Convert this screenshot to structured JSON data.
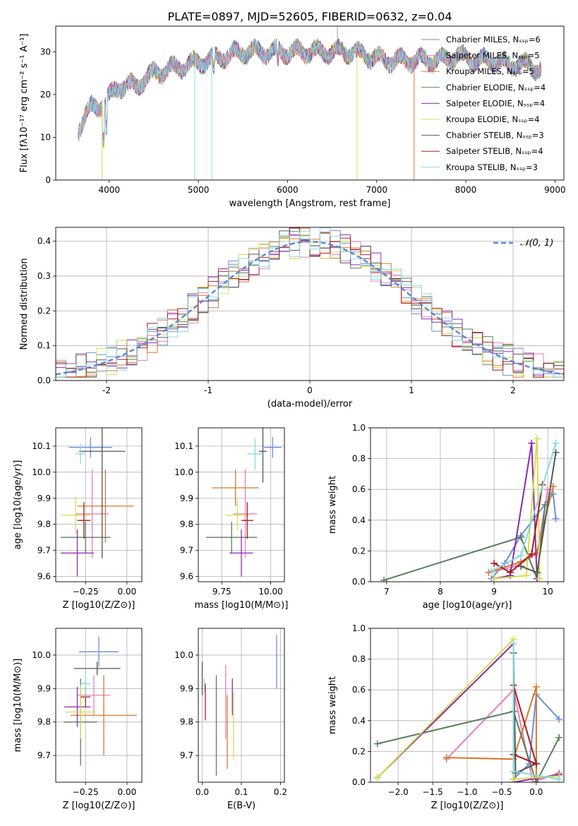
{
  "title": "PLATE=0897, MJD=52605, FIBERID=0632, z=0.04",
  "colors": [
    "#6a8fdc",
    "#e97fb8",
    "#d7782a",
    "#55805a",
    "#8a2ab0",
    "#d6dd4a",
    "#555555",
    "#a81c1c",
    "#86dbe2"
  ],
  "chart_data": [
    {
      "type": "line",
      "id": "spectrum",
      "xlabel": "wavelength [Angstrom, rest frame]",
      "ylabel": "Flux [fλ10⁻¹⁷ erg cm⁻² s⁻¹ A⁻¹]",
      "xlim": [
        3400,
        9100
      ],
      "ylim": [
        0,
        36
      ],
      "xticks": [
        4000,
        5000,
        6000,
        7000,
        8000,
        9000
      ],
      "yticks": [
        0,
        10,
        20,
        30
      ],
      "grid": false,
      "legend_position": "top-right",
      "continuum_x": [
        3650,
        3800,
        3950,
        4100,
        4300,
        4500,
        4700,
        4900,
        5100,
        5300,
        5500,
        5700,
        5900,
        6100,
        6300,
        6500,
        6700,
        6900,
        7100,
        7300,
        7500,
        7700,
        7900,
        8100,
        8300,
        8500,
        8700,
        8800
      ],
      "continuum_y": [
        12,
        17,
        18,
        22,
        22,
        25,
        26,
        27,
        28,
        29,
        30,
        30,
        30,
        30,
        30,
        30,
        30,
        29,
        28,
        28,
        28,
        28,
        29,
        28,
        28,
        27,
        27,
        26
      ],
      "series": [
        {
          "name": "Chabrier MILES, N_SSP=6"
        },
        {
          "name": "Salpeter MILES, N_SSP=5"
        },
        {
          "name": "Kroupa MILES, N_SSP=5"
        },
        {
          "name": "Chabrier ELODIE, N_SSP=4"
        },
        {
          "name": "Salpeter ELODIE, N_SSP=4"
        },
        {
          "name": "Kroupa ELODIE, N_SSP=4"
        },
        {
          "name": "Chabrier STELIB, N_SSP=3"
        },
        {
          "name": "Salpeter STELIB, N_SSP=4"
        },
        {
          "name": "Kroupa STELIB, N_SSP=3"
        }
      ]
    },
    {
      "type": "line",
      "id": "residuals",
      "xlabel": "(data-model)/error",
      "ylabel": "Normed distribution",
      "xlim": [
        -2.5,
        2.5
      ],
      "ylim": [
        0,
        0.44
      ],
      "xticks": [
        -2,
        -1,
        0,
        1,
        2
      ],
      "yticks": [
        0.0,
        0.1,
        0.2,
        0.3,
        0.4
      ],
      "grid": true,
      "legend_position": "top-right",
      "legend_label": "𝒩(0, 1)",
      "bin_width": 0.1
    },
    {
      "type": "scatter",
      "id": "age_vs_Z",
      "xlabel": "Z [log10(Z/Z⊙)]",
      "ylabel": "age  [log10(age/yr)]",
      "xlim": [
        -0.43,
        0.09
      ],
      "ylim": [
        9.58,
        10.17
      ],
      "xticks": [
        -0.25,
        0.0
      ],
      "xticklabels": [
        "−0.25",
        "0.00"
      ],
      "yticks": [
        9.6,
        9.7,
        9.8,
        9.9,
        10.0,
        10.1
      ],
      "grid": true,
      "points": [
        {
          "x": -0.22,
          "y": 10.095,
          "xerr": 0.13,
          "yerr": 0.04,
          "c": 0
        },
        {
          "x": -0.21,
          "y": 9.84,
          "xerr": 0.1,
          "yerr": 0.17,
          "c": 1
        },
        {
          "x": -0.13,
          "y": 9.87,
          "xerr": 0.17,
          "yerr": 0.14,
          "c": 2
        },
        {
          "x": -0.25,
          "y": 9.75,
          "xerr": 0.15,
          "yerr": 0.06,
          "c": 3
        },
        {
          "x": -0.3,
          "y": 9.69,
          "xerr": 0.1,
          "yerr": 0.09,
          "c": 4
        },
        {
          "x": -0.31,
          "y": 9.835,
          "xerr": 0.09,
          "yerr": 0.07,
          "c": 5
        },
        {
          "x": -0.15,
          "y": 10.08,
          "xerr": 0.14,
          "yerr": 0.41,
          "c": 6
        },
        {
          "x": -0.26,
          "y": 9.815,
          "xerr": 0.04,
          "yerr": 0.07,
          "c": 7
        },
        {
          "x": -0.28,
          "y": 10.07,
          "xerr": 0.03,
          "yerr": 0.04,
          "c": 8
        }
      ]
    },
    {
      "type": "scatter",
      "id": "age_vs_mass",
      "xlabel": "mass [log10(M/M⊙)]",
      "ylabel": "",
      "xlim": [
        9.63,
        10.07
      ],
      "ylim": [
        9.58,
        10.17
      ],
      "xticks": [
        9.75,
        10.0
      ],
      "xticklabels": [
        "9.75",
        "10.00"
      ],
      "yticks": [
        9.6,
        9.7,
        9.8,
        9.9,
        10.0,
        10.1
      ],
      "grid": true,
      "points": [
        {
          "x": 10.01,
          "y": 10.095,
          "xerr": 0.045,
          "yerr": 0.04,
          "c": 0
        },
        {
          "x": 9.87,
          "y": 9.84,
          "xerr": 0.06,
          "yerr": 0.17,
          "c": 1
        },
        {
          "x": 9.82,
          "y": 9.94,
          "xerr": 0.12,
          "yerr": 0.07,
          "c": 2
        },
        {
          "x": 9.8,
          "y": 9.75,
          "xerr": 0.13,
          "yerr": 0.06,
          "c": 3
        },
        {
          "x": 9.85,
          "y": 9.69,
          "xerr": 0.06,
          "yerr": 0.09,
          "c": 4
        },
        {
          "x": 9.83,
          "y": 9.835,
          "xerr": 0.06,
          "yerr": 0.06,
          "c": 5
        },
        {
          "x": 9.96,
          "y": 10.08,
          "xerr": 0.02,
          "yerr": 0.12,
          "c": 6
        },
        {
          "x": 9.88,
          "y": 9.815,
          "xerr": 0.03,
          "yerr": 0.07,
          "c": 7
        },
        {
          "x": 9.92,
          "y": 10.07,
          "xerr": 0.04,
          "yerr": 0.06,
          "c": 8
        }
      ]
    },
    {
      "type": "line",
      "id": "weight_vs_age",
      "xlabel": "age  [log10(age/yr)]",
      "ylabel": "mass weight",
      "xlim": [
        6.7,
        10.3
      ],
      "ylim": [
        0,
        1
      ],
      "xticks": [
        7,
        8,
        9,
        10
      ],
      "yticks": [
        0.0,
        0.2,
        0.4,
        0.6,
        0.8,
        1.0
      ],
      "grid": true,
      "series": [
        {
          "c": 0,
          "x": [
            8.95,
            9.2,
            9.5,
            10.1,
            10.15
          ],
          "y": [
            0.02,
            0.12,
            0.3,
            0.57,
            0.41
          ]
        },
        {
          "c": 1,
          "x": [
            8.9,
            9.4,
            9.8,
            10.0
          ],
          "y": [
            0.06,
            0.1,
            0.18,
            0.6
          ]
        },
        {
          "c": 2,
          "x": [
            8.9,
            9.5,
            9.8,
            10.1
          ],
          "y": [
            0.06,
            0.13,
            0.19,
            0.62
          ]
        },
        {
          "c": 3,
          "x": [
            6.95,
            9.5,
            9.8,
            9.95
          ],
          "y": [
            0.01,
            0.29,
            0.02,
            0.5
          ]
        },
        {
          "c": 4,
          "x": [
            9.0,
            9.3,
            9.7,
            9.8
          ],
          "y": [
            0.02,
            0.04,
            0.9,
            0.02
          ]
        },
        {
          "c": 5,
          "x": [
            9.0,
            9.6,
            9.8,
            9.85
          ],
          "y": [
            0.02,
            0.04,
            0.93,
            0.02
          ]
        },
        {
          "c": 6,
          "x": [
            9.5,
            9.8,
            10.15
          ],
          "y": [
            0.1,
            0.06,
            0.84
          ]
        },
        {
          "c": 7,
          "x": [
            9.0,
            9.3,
            9.7,
            9.9
          ],
          "y": [
            0.12,
            0.06,
            0.18,
            0.63
          ]
        },
        {
          "c": 8,
          "x": [
            8.95,
            9.5,
            10.15
          ],
          "y": [
            0.07,
            0.17,
            0.9
          ]
        }
      ]
    },
    {
      "type": "scatter",
      "id": "mass_vs_Z",
      "xlabel": "Z [log10(Z/Z⊙)]",
      "ylabel": "mass [log10(M/M⊙)]",
      "xlim": [
        -0.43,
        0.09
      ],
      "ylim": [
        9.62,
        10.08
      ],
      "xticks": [
        -0.25,
        0.0
      ],
      "xticklabels": [
        "−0.25",
        "0.00"
      ],
      "yticks": [
        9.7,
        9.8,
        9.9,
        10.0
      ],
      "grid": true,
      "points": [
        {
          "x": -0.17,
          "y": 10.01,
          "xerr": 0.12,
          "yerr": 0.045,
          "c": 0
        },
        {
          "x": -0.2,
          "y": 9.88,
          "xerr": 0.1,
          "yerr": 0.06,
          "c": 1
        },
        {
          "x": -0.14,
          "y": 9.82,
          "xerr": 0.2,
          "yerr": 0.12,
          "c": 2
        },
        {
          "x": -0.28,
          "y": 9.8,
          "xerr": 0.1,
          "yerr": 0.13,
          "c": 3
        },
        {
          "x": -0.3,
          "y": 9.845,
          "xerr": 0.08,
          "yerr": 0.06,
          "c": 4
        },
        {
          "x": -0.28,
          "y": 9.83,
          "xerr": 0.09,
          "yerr": 0.08,
          "c": 5
        },
        {
          "x": -0.18,
          "y": 9.96,
          "xerr": 0.14,
          "yerr": 0.02,
          "c": 6
        },
        {
          "x": -0.25,
          "y": 9.875,
          "xerr": 0.03,
          "yerr": 0.03,
          "c": 7
        },
        {
          "x": -0.25,
          "y": 9.915,
          "xerr": 0.03,
          "yerr": 0.04,
          "c": 8
        }
      ]
    },
    {
      "type": "scatter",
      "id": "mass_vs_ebv",
      "xlabel": "E(B-V)",
      "ylabel": "",
      "xlim": [
        -0.01,
        0.21
      ],
      "ylim": [
        9.62,
        10.08
      ],
      "xticks": [
        0.0,
        0.1,
        0.2
      ],
      "xticklabels": [
        "0.0",
        "0.1",
        "0.2"
      ],
      "yticks": [
        9.7,
        9.8,
        9.9,
        10.0
      ],
      "grid": true,
      "points": [
        {
          "x": 0.19,
          "y": 9.98,
          "xerr": 0,
          "yerr": 0.08,
          "c": 0
        },
        {
          "x": 0.06,
          "y": 9.86,
          "xerr": 0,
          "yerr": 0.11,
          "c": 1
        },
        {
          "x": 0.064,
          "y": 9.77,
          "xerr": 0,
          "yerr": 0.11,
          "c": 2
        },
        {
          "x": 0.036,
          "y": 9.79,
          "xerr": 0,
          "yerr": 0.15,
          "c": 3
        },
        {
          "x": 0.077,
          "y": 9.875,
          "xerr": 0,
          "yerr": 0.055,
          "c": 4
        },
        {
          "x": 0.08,
          "y": 9.79,
          "xerr": 0,
          "yerr": 0.1,
          "c": 5
        },
        {
          "x": 0.0,
          "y": 9.93,
          "xerr": 0,
          "yerr": 0.05,
          "c": 6
        },
        {
          "x": 0.008,
          "y": 9.86,
          "xerr": 0,
          "yerr": 0.055,
          "c": 7
        },
        {
          "x": 0.005,
          "y": 9.91,
          "xerr": 0,
          "yerr": 0.02,
          "c": 8
        }
      ]
    },
    {
      "type": "line",
      "id": "weight_vs_Z",
      "xlabel": "Z [log10(Z/Z⊙)]",
      "ylabel": "mass weight",
      "xlim": [
        -2.4,
        0.4
      ],
      "ylim": [
        0,
        1
      ],
      "xticks": [
        -2.0,
        -1.5,
        -1.0,
        -0.5,
        0.0
      ],
      "xticklabels": [
        "−2.0",
        "−1.5",
        "−1.0",
        "−0.5",
        "0.0"
      ],
      "yticks": [
        0.0,
        0.2,
        0.4,
        0.6,
        0.8,
        1.0
      ],
      "grid": true,
      "series": [
        {
          "c": 0,
          "x": [
            -0.33,
            -0.1,
            0.0,
            0.33
          ],
          "y": [
            0.02,
            0.12,
            0.57,
            0.41
          ]
        },
        {
          "c": 1,
          "x": [
            -1.3,
            -0.33,
            -0.05,
            0.33
          ],
          "y": [
            0.15,
            0.6,
            0.0,
            0.06
          ]
        },
        {
          "c": 2,
          "x": [
            -1.3,
            -0.33,
            0.0,
            0.0
          ],
          "y": [
            0.16,
            0.15,
            0.62,
            0.0
          ]
        },
        {
          "c": 3,
          "x": [
            -2.3,
            -0.33,
            0.0,
            0.33
          ],
          "y": [
            0.25,
            0.46,
            0.0,
            0.29
          ]
        },
        {
          "c": 4,
          "x": [
            -2.3,
            -0.33,
            -0.33,
            0.33
          ],
          "y": [
            0.03,
            0.9,
            0.0,
            0.05
          ]
        },
        {
          "c": 5,
          "x": [
            -2.3,
            -0.33,
            -0.33,
            0.33
          ],
          "y": [
            0.03,
            0.93,
            0.02,
            0.04
          ]
        },
        {
          "c": 6,
          "x": [
            -0.33,
            -0.3,
            0.0
          ],
          "y": [
            0.84,
            0.06,
            0.12
          ]
        },
        {
          "c": 7,
          "x": [
            -0.33,
            0.0,
            -0.33
          ],
          "y": [
            0.18,
            0.12,
            0.63
          ]
        },
        {
          "c": 8,
          "x": [
            -0.33,
            -0.33,
            0.33
          ],
          "y": [
            0.9,
            0.07,
            0.02
          ]
        }
      ]
    }
  ]
}
